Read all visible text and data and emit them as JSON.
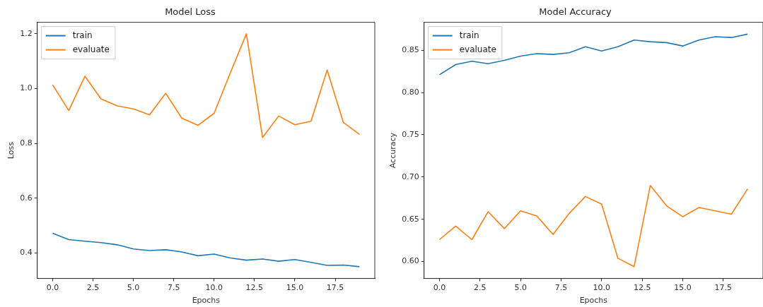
{
  "chart_data": [
    {
      "type": "line",
      "title": "Model Loss",
      "xlabel": "Epochs",
      "ylabel": "Loss",
      "legend": "top left",
      "marker": "none",
      "x": [
        0,
        1,
        2,
        3,
        4,
        5,
        6,
        7,
        8,
        9,
        10,
        11,
        12,
        13,
        14,
        15,
        16,
        17,
        18,
        19
      ],
      "series": [
        {
          "name": "train",
          "color": "#1f77b4",
          "values": [
            0.472,
            0.449,
            0.443,
            0.438,
            0.43,
            0.415,
            0.409,
            0.412,
            0.404,
            0.39,
            0.396,
            0.382,
            0.374,
            0.378,
            0.37,
            0.376,
            0.366,
            0.355,
            0.356,
            0.35
          ]
        },
        {
          "name": "evaluate",
          "color": "#ff7f0e",
          "values": [
            1.014,
            0.92,
            1.045,
            0.962,
            0.937,
            0.926,
            0.904,
            0.983,
            0.892,
            0.866,
            0.91,
            1.057,
            1.2,
            0.822,
            0.9,
            0.868,
            0.881,
            1.068,
            0.877,
            0.833
          ]
        }
      ],
      "xlim": [
        -0.95,
        19.95
      ],
      "ylim": [
        0.307,
        1.242
      ],
      "xticks": [
        {
          "value": 0,
          "label": "0.0"
        },
        {
          "value": 2.5,
          "label": "2.5"
        },
        {
          "value": 5,
          "label": "5.0"
        },
        {
          "value": 7.5,
          "label": "7.5"
        },
        {
          "value": 10,
          "label": "10.0"
        },
        {
          "value": 12.5,
          "label": "12.5"
        },
        {
          "value": 15,
          "label": "15.0"
        },
        {
          "value": 17.5,
          "label": "17.5"
        }
      ],
      "yticks": [
        {
          "value": 0.4,
          "label": "0.4"
        },
        {
          "value": 0.6,
          "label": "0.6"
        },
        {
          "value": 0.8,
          "label": "0.8"
        },
        {
          "value": 1.0,
          "label": "1.0"
        },
        {
          "value": 1.2,
          "label": "1.2"
        }
      ]
    },
    {
      "type": "line",
      "title": "Model Accuracy",
      "xlabel": "Epochs",
      "ylabel": "Accuracy",
      "legend": "top left",
      "marker": "none",
      "x": [
        0,
        1,
        2,
        3,
        4,
        5,
        6,
        7,
        8,
        9,
        10,
        11,
        12,
        13,
        14,
        15,
        16,
        17,
        18,
        19
      ],
      "series": [
        {
          "name": "train",
          "color": "#1f77b4",
          "values": [
            0.821,
            0.833,
            0.837,
            0.834,
            0.838,
            0.843,
            0.846,
            0.845,
            0.847,
            0.854,
            0.849,
            0.854,
            0.862,
            0.86,
            0.859,
            0.855,
            0.862,
            0.866,
            0.865,
            0.869
          ]
        },
        {
          "name": "evaluate",
          "color": "#ff7f0e",
          "values": [
            0.626,
            0.642,
            0.626,
            0.659,
            0.639,
            0.66,
            0.654,
            0.632,
            0.657,
            0.677,
            0.668,
            0.604,
            0.594,
            0.69,
            0.666,
            0.653,
            0.664,
            0.66,
            0.656,
            0.686
          ]
        }
      ],
      "xlim": [
        -0.95,
        19.95
      ],
      "ylim": [
        0.58,
        0.883
      ],
      "xticks": [
        {
          "value": 0,
          "label": "0.0"
        },
        {
          "value": 2.5,
          "label": "2.5"
        },
        {
          "value": 5,
          "label": "5.0"
        },
        {
          "value": 7.5,
          "label": "7.5"
        },
        {
          "value": 10,
          "label": "10.0"
        },
        {
          "value": 12.5,
          "label": "12.5"
        },
        {
          "value": 15,
          "label": "15.0"
        },
        {
          "value": 17.5,
          "label": "17.5"
        }
      ],
      "yticks": [
        {
          "value": 0.6,
          "label": "0.60"
        },
        {
          "value": 0.65,
          "label": "0.65"
        },
        {
          "value": 0.7,
          "label": "0.70"
        },
        {
          "value": 0.75,
          "label": "0.75"
        },
        {
          "value": 0.8,
          "label": "0.80"
        },
        {
          "value": 0.85,
          "label": "0.85"
        }
      ]
    }
  ]
}
